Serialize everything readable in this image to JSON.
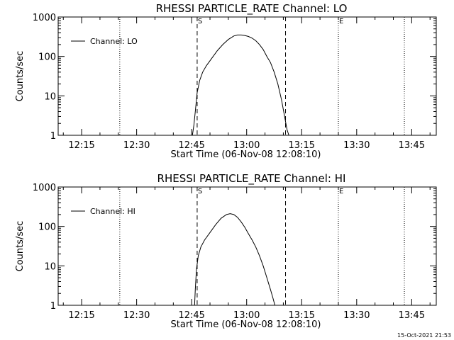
{
  "colors": {
    "background": "#ffffff",
    "foreground": "#000000"
  },
  "footer": {
    "timestamp": "15-Oct-2021 21:53"
  },
  "chart_data": [
    {
      "type": "line",
      "title": "RHESSI PARTICLE_RATE Channel: LO",
      "xlabel": "Start Time (06-Nov-08 12:08:10)",
      "ylabel": "Counts/sec",
      "yscale": "log",
      "ylim": [
        1,
        1000
      ],
      "xlim_minutes": [
        728.6,
        831.7
      ],
      "x_ticks": [
        {
          "label": "12:15",
          "minutes": 735
        },
        {
          "label": "12:30",
          "minutes": 750
        },
        {
          "label": "12:45",
          "minutes": 765
        },
        {
          "label": "13:00",
          "minutes": 780
        },
        {
          "label": "13:15",
          "minutes": 795
        },
        {
          "label": "13:30",
          "minutes": 810
        },
        {
          "label": "13:45",
          "minutes": 825
        }
      ],
      "y_ticks": [
        {
          "label": "1",
          "value": 1
        },
        {
          "label": "10",
          "value": 10
        },
        {
          "label": "100",
          "value": 100
        },
        {
          "label": "1000",
          "value": 1000
        }
      ],
      "legend": {
        "label": "Channel: LO",
        "position": "top-left"
      },
      "markers": [
        {
          "label": "S",
          "minutes": 766.5,
          "style": "dashed"
        },
        {
          "label": "",
          "minutes": 790.6,
          "style": "dashed"
        },
        {
          "label": "E",
          "minutes": 805.0,
          "style": "dotted"
        },
        {
          "label": "",
          "minutes": 745.4,
          "style": "dotted"
        },
        {
          "label": "",
          "minutes": 823.0,
          "style": "dotted"
        }
      ],
      "series": [
        {
          "name": "Channel: LO",
          "x_minutes": [
            765.2,
            765.6,
            766.0,
            766.5,
            767.2,
            768.0,
            769.0,
            770.5,
            772.0,
            773.5,
            775.0,
            776.5,
            777.5,
            778.5,
            779.5,
            780.5,
            781.5,
            782.5,
            783.5,
            784.5,
            785.5,
            786.5,
            787.5,
            788.5,
            789.5,
            790.0,
            790.5,
            791.0,
            791.5
          ],
          "values": [
            1.0,
            1.8,
            4.0,
            12,
            25,
            40,
            58,
            90,
            140,
            200,
            270,
            330,
            350,
            350,
            340,
            320,
            290,
            250,
            200,
            150,
            100,
            70,
            40,
            20,
            8,
            4.5,
            2.5,
            1.4,
            1.0
          ]
        }
      ]
    },
    {
      "type": "line",
      "title": "RHESSI PARTICLE_RATE Channel: HI",
      "xlabel": "Start Time (06-Nov-08 12:08:10)",
      "ylabel": "Counts/sec",
      "yscale": "log",
      "ylim": [
        1,
        1000
      ],
      "xlim_minutes": [
        728.6,
        831.7
      ],
      "x_ticks": [
        {
          "label": "12:15",
          "minutes": 735
        },
        {
          "label": "12:30",
          "minutes": 750
        },
        {
          "label": "12:45",
          "minutes": 765
        },
        {
          "label": "13:00",
          "minutes": 780
        },
        {
          "label": "13:15",
          "minutes": 795
        },
        {
          "label": "13:30",
          "minutes": 810
        },
        {
          "label": "13:45",
          "minutes": 825
        }
      ],
      "y_ticks": [
        {
          "label": "1",
          "value": 1
        },
        {
          "label": "10",
          "value": 10
        },
        {
          "label": "100",
          "value": 100
        },
        {
          "label": "1000",
          "value": 1000
        }
      ],
      "legend": {
        "label": "Channel: HI",
        "position": "top-left"
      },
      "markers": [
        {
          "label": "S",
          "minutes": 766.5,
          "style": "dashed"
        },
        {
          "label": "",
          "minutes": 790.6,
          "style": "dashed"
        },
        {
          "label": "E",
          "minutes": 805.0,
          "style": "dotted"
        },
        {
          "label": "",
          "minutes": 745.4,
          "style": "dotted"
        },
        {
          "label": "",
          "minutes": 823.0,
          "style": "dotted"
        }
      ],
      "series": [
        {
          "name": "Channel: HI",
          "x_minutes": [
            765.8,
            766.0,
            766.3,
            766.8,
            767.5,
            768.5,
            770.0,
            771.5,
            773.0,
            774.5,
            775.5,
            776.5,
            777.5,
            778.5,
            779.5,
            780.5,
            781.5,
            782.5,
            783.5,
            784.5,
            785.5,
            786.5,
            787.2,
            787.7
          ],
          "values": [
            1.0,
            2.5,
            8,
            18,
            30,
            45,
            70,
            110,
            160,
            200,
            210,
            200,
            170,
            130,
            95,
            65,
            45,
            30,
            18,
            10,
            5,
            2.5,
            1.5,
            1.0
          ]
        }
      ]
    }
  ]
}
